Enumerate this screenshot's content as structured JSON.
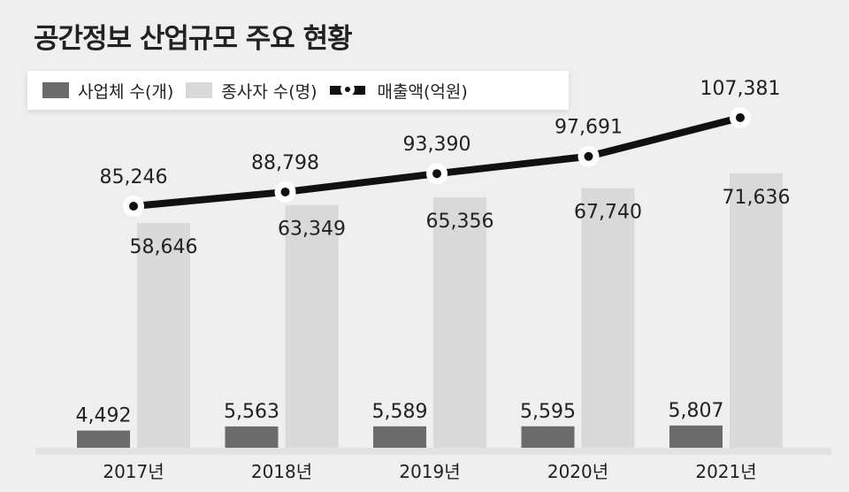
{
  "title": "공간정보 산업규모 주요 현황",
  "colors": {
    "companies": "#6b6b6b",
    "employees": "#d9d9d9",
    "revenue": "#111111",
    "background": "#efefef"
  },
  "chart_data": {
    "type": "bar",
    "title": "공간정보 산업규모 주요 현황",
    "categories": [
      "2017년",
      "2018년",
      "2019년",
      "2020년",
      "2021년"
    ],
    "series": [
      {
        "name": "사업체 수(개)",
        "type": "bar",
        "values": [
          4492,
          5563,
          5589,
          5595,
          5807
        ],
        "labels": [
          "4,492",
          "5,563",
          "5,589",
          "5,595",
          "5,807"
        ]
      },
      {
        "name": "종사자 수(명)",
        "type": "bar",
        "values": [
          58646,
          63349,
          65356,
          67740,
          71636
        ],
        "labels": [
          "58,646",
          "63,349",
          "65,356",
          "67,740",
          "71,636"
        ]
      },
      {
        "name": "매출액(억원)",
        "type": "line",
        "values": [
          85246,
          88798,
          93390,
          97691,
          107381
        ],
        "labels": [
          "85,246",
          "88,798",
          "93,390",
          "97,691",
          "107,381"
        ]
      }
    ],
    "legend": "top-left",
    "grid": false
  }
}
